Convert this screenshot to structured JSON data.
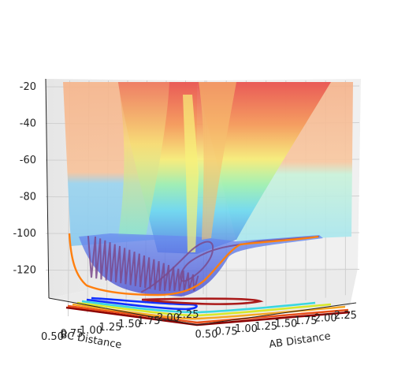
{
  "chart_data": {
    "type": "surface3d",
    "title": "",
    "xlabel": "AB Distance",
    "ylabel": "BC Distance",
    "zlabel": "",
    "x_ticks": [
      "0.50",
      "0.75",
      "1.00",
      "1.25",
      "1.50",
      "1.75",
      "2.00",
      "2.25"
    ],
    "y_ticks": [
      "0.50",
      "0.75",
      "1.00",
      "1.25",
      "1.50",
      "1.75",
      "2.00",
      "2.25"
    ],
    "z_ticks": [
      "-20",
      "-40",
      "-60",
      "-80",
      "-100",
      "-120"
    ],
    "xlim": [
      0.5,
      2.3
    ],
    "ylim": [
      0.5,
      2.3
    ],
    "zlim": [
      -135,
      -18
    ],
    "colormap": "jet",
    "surface_alpha": 0.5,
    "contour_offset_z": -135,
    "trajectory_color": "#7a4a8c",
    "reaction_path_color": "#ff7f0e",
    "grid": true
  }
}
